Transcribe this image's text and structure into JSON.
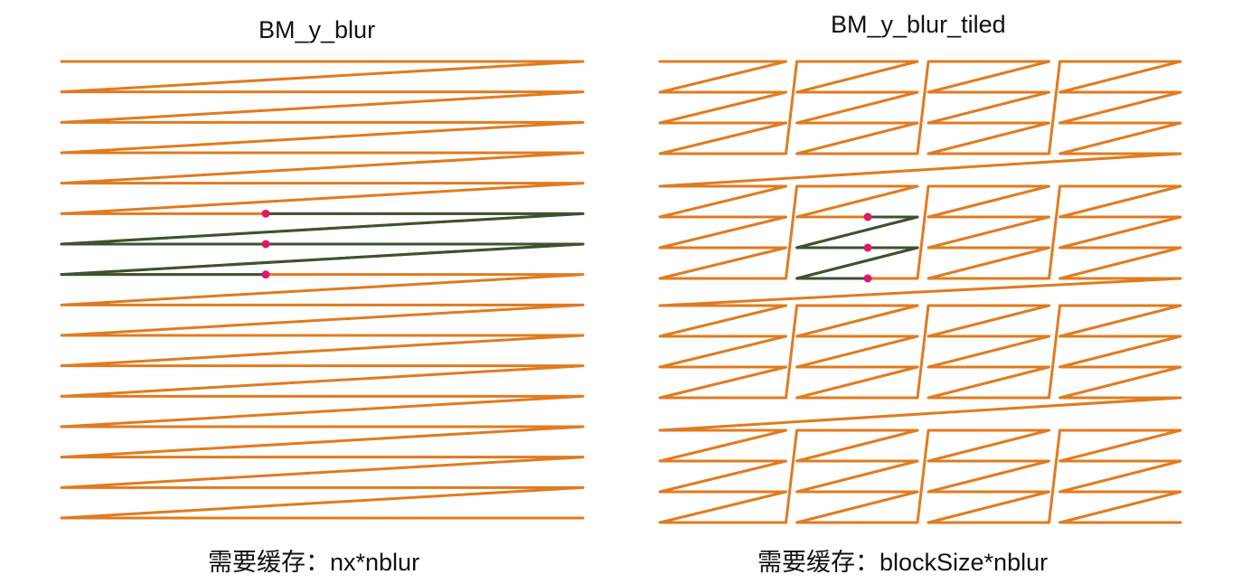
{
  "panels": [
    {
      "title": "BM_y_blur",
      "caption": "需要缓存：nx*nblur",
      "rows": 16,
      "highlighted_rows": 3
    },
    {
      "title": "BM_y_blur_tiled",
      "caption": "需要缓存：blockSize*nblur",
      "block_rows": 4,
      "block_columns": 4,
      "rows_per_block": 4,
      "highlighted_rows": 3
    }
  ],
  "colors": {
    "scan_path": "#E07B1F",
    "highlight_path": "#3C5232",
    "marker": "#E0176B",
    "text": "#111111"
  }
}
